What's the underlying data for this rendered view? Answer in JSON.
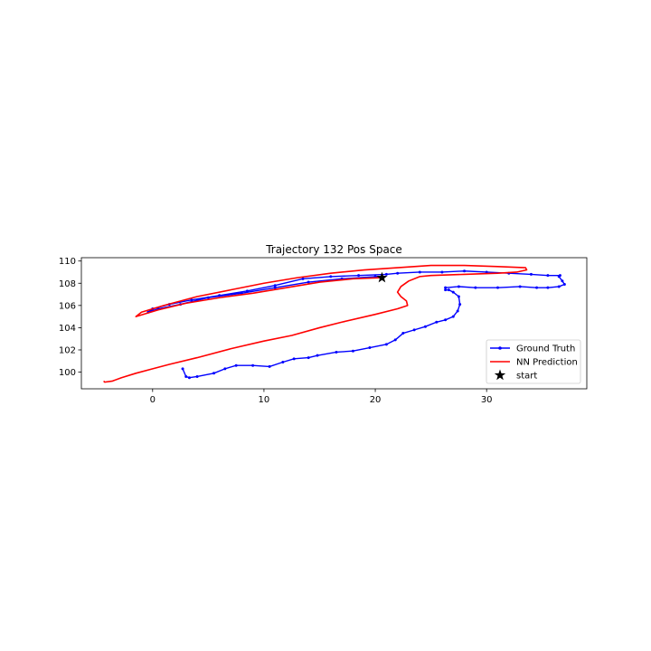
{
  "chart_data": {
    "type": "line",
    "title": "Trajectory 132 Pos Space",
    "xlabel": "",
    "ylabel": "",
    "xlim": [
      -6.4,
      39.0
    ],
    "ylim": [
      98.5,
      110.3
    ],
    "xticks": [
      0,
      10,
      20,
      30
    ],
    "yticks": [
      100,
      102,
      104,
      106,
      108,
      110
    ],
    "grid": false,
    "legend_position": "lower-right",
    "series": [
      {
        "name": "Ground Truth",
        "color": "#0000ff",
        "marker": "dot",
        "x": [
          2.7,
          3.0,
          3.3,
          4.0,
          5.5,
          6.5,
          7.5,
          9.0,
          10.5,
          11.7,
          12.7,
          14.0,
          14.8,
          16.5,
          18.0,
          19.5,
          21.0,
          21.8,
          22.5,
          23.5,
          24.5,
          25.5,
          26.3,
          27.0,
          27.4,
          27.6,
          27.5,
          27.0,
          26.6,
          26.3,
          26.3,
          27.5,
          29.0,
          31.0,
          33.0,
          34.5,
          35.5,
          36.5,
          37.0,
          36.8,
          36.5,
          36.6,
          35.5,
          34.0,
          32.0,
          30.0,
          28.0,
          26.0,
          24.0,
          22.0,
          21.0,
          18.5,
          16.0,
          13.5,
          11.0,
          8.5,
          6.0,
          3.5,
          1.5,
          0.0,
          -0.4,
          0.5,
          2.5,
          5.0,
          8.0,
          11.0,
          14.0,
          17.0,
          20.0,
          20.6
        ],
        "y": [
          100.3,
          99.6,
          99.5,
          99.6,
          99.9,
          100.3,
          100.6,
          100.6,
          100.5,
          100.9,
          101.2,
          101.3,
          101.5,
          101.8,
          101.9,
          102.2,
          102.5,
          102.9,
          103.5,
          103.8,
          104.1,
          104.5,
          104.7,
          105.0,
          105.5,
          106.1,
          106.8,
          107.2,
          107.4,
          107.4,
          107.6,
          107.7,
          107.6,
          107.6,
          107.7,
          107.6,
          107.6,
          107.7,
          107.9,
          108.2,
          108.6,
          108.7,
          108.7,
          108.8,
          108.9,
          109.0,
          109.1,
          109.0,
          109.0,
          108.9,
          108.8,
          108.7,
          108.6,
          108.4,
          107.8,
          107.3,
          106.9,
          106.5,
          106.1,
          105.7,
          105.4,
          105.7,
          106.1,
          106.7,
          107.1,
          107.6,
          108.1,
          108.4,
          108.6,
          108.6
        ]
      },
      {
        "name": "NN Prediction",
        "color": "#ff0000",
        "marker": "none",
        "x": [
          20.6,
          18.0,
          15.0,
          12.0,
          9.0,
          6.0,
          3.0,
          0.5,
          -1.5,
          -1.0,
          1.0,
          4.0,
          7.0,
          10.0,
          13.0,
          16.0,
          19.0,
          22.0,
          25.0,
          28.0,
          31.0,
          33.5,
          33.6,
          32.7,
          31.0,
          28.0,
          25.0,
          24.0,
          23.0,
          22.3,
          22.0,
          22.3,
          22.8,
          22.9,
          22.0,
          20.0,
          17.0,
          15.0,
          12.5,
          10.0,
          7.0,
          4.0,
          1.5,
          0.0,
          -1.5,
          -2.8,
          -3.6,
          -4.3,
          -4.4
        ],
        "y": [
          108.5,
          108.4,
          108.1,
          107.6,
          107.1,
          106.7,
          106.2,
          105.6,
          105.0,
          105.4,
          106.0,
          106.8,
          107.4,
          108.0,
          108.5,
          108.9,
          109.2,
          109.4,
          109.6,
          109.6,
          109.5,
          109.4,
          109.2,
          109.0,
          108.9,
          108.8,
          108.7,
          108.6,
          108.2,
          107.7,
          107.2,
          106.8,
          106.4,
          106.0,
          105.7,
          105.2,
          104.5,
          104.0,
          103.3,
          102.8,
          102.1,
          101.3,
          100.7,
          100.3,
          99.9,
          99.5,
          99.2,
          99.1,
          99.2
        ]
      }
    ],
    "markers": [
      {
        "name": "start",
        "x": 20.6,
        "y": 108.5,
        "color": "#000000",
        "marker": "star"
      }
    ]
  }
}
